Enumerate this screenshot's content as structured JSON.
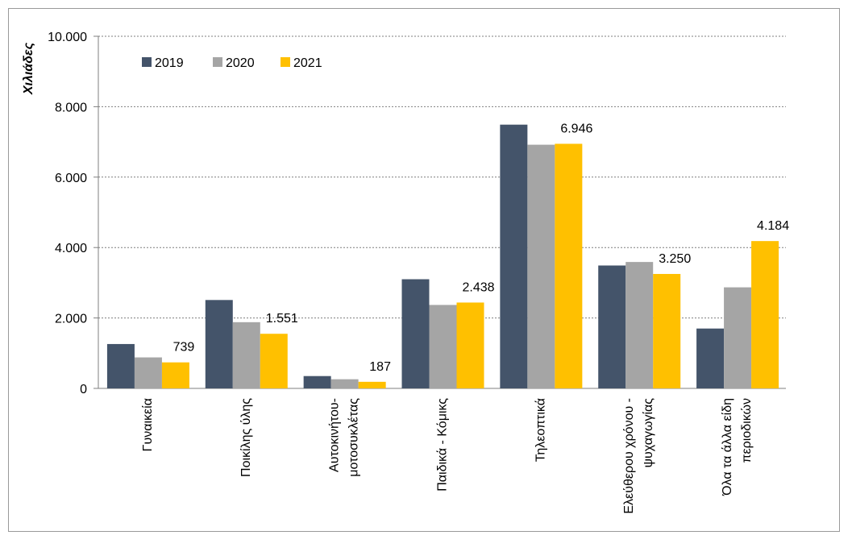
{
  "chart_data": {
    "type": "bar",
    "ylabel": "Χιλιάδες",
    "xlabel": "",
    "ylim": [
      0,
      10000
    ],
    "yticks": [
      "0",
      "2.000",
      "4.000",
      "6.000",
      "8.000",
      "10.000"
    ],
    "grid": true,
    "legend_position": "top-left",
    "categories": [
      [
        "Γυναικεία"
      ],
      [
        "Ποικίλης ύλης"
      ],
      [
        "Αυτοκινήτου-",
        "μοτοσυκλέτας"
      ],
      [
        "Παιδικά - Κόμικς"
      ],
      [
        "Τηλεοπτικά"
      ],
      [
        "Ελεύθερου χρόνου -",
        "ψυχαγωγίας"
      ],
      [
        "Όλα τα άλλα είδη",
        "περιοδικών"
      ]
    ],
    "series": [
      {
        "name": "2019",
        "color": "#44546a",
        "values": [
          1260,
          2510,
          350,
          3100,
          7490,
          3490,
          1700
        ]
      },
      {
        "name": "2020",
        "color": "#a5a5a5",
        "values": [
          880,
          1880,
          260,
          2370,
          6920,
          3590,
          2870
        ]
      },
      {
        "name": "2021",
        "color": "#ffc000",
        "values": [
          739,
          1551,
          187,
          2438,
          6946,
          3250,
          4184
        ]
      }
    ],
    "data_labels": {
      "series": "2021",
      "labels": [
        "739",
        "1.551",
        "187",
        "2.438",
        "6.946",
        "3.250",
        "4.184"
      ]
    }
  }
}
